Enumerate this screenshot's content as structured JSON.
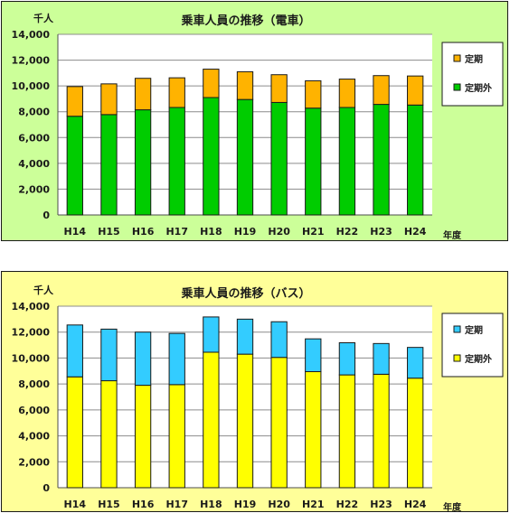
{
  "chart_data": [
    {
      "type": "bar",
      "stacked": true,
      "title": "乗車人員の推移（電車）",
      "unit_label": "千人",
      "xlabel": "年度",
      "categories": [
        "H14",
        "H15",
        "H16",
        "H17",
        "H18",
        "H19",
        "H20",
        "H21",
        "H22",
        "H23",
        "H24"
      ],
      "ylim": [
        0,
        14000
      ],
      "yticks": [
        "0",
        "2,000",
        "4,000",
        "6,000",
        "8,000",
        "10,000",
        "12,000",
        "14,000"
      ],
      "grid": true,
      "legend_position": "right",
      "series": [
        {
          "name": "定期外",
          "color": "#00cc00",
          "values": [
            7650,
            7780,
            8150,
            8330,
            9100,
            8950,
            8720,
            8280,
            8330,
            8570,
            8520
          ]
        },
        {
          "name": "定期",
          "color": "#ffb300",
          "values": [
            2300,
            2380,
            2440,
            2300,
            2200,
            2150,
            2150,
            2120,
            2200,
            2230,
            2250
          ]
        }
      ]
    },
    {
      "type": "bar",
      "stacked": true,
      "title": "乗車人員の推移（バス）",
      "unit_label": "千人",
      "xlabel": "年度",
      "categories": [
        "H14",
        "H15",
        "H16",
        "H17",
        "H18",
        "H19",
        "H20",
        "H21",
        "H22",
        "H23",
        "H24"
      ],
      "ylim": [
        0,
        14000
      ],
      "yticks": [
        "0",
        "2,000",
        "4,000",
        "6,000",
        "8,000",
        "10,000",
        "12,000",
        "14,000"
      ],
      "grid": true,
      "legend_position": "right",
      "series": [
        {
          "name": "定期外",
          "color": "#ffff00",
          "values": [
            8550,
            8250,
            7900,
            7950,
            10450,
            10300,
            10050,
            8950,
            8700,
            8750,
            8450
          ]
        },
        {
          "name": "定期",
          "color": "#33ccff",
          "values": [
            4000,
            3980,
            4100,
            3950,
            2720,
            2700,
            2750,
            2530,
            2480,
            2370,
            2370
          ]
        }
      ]
    }
  ]
}
